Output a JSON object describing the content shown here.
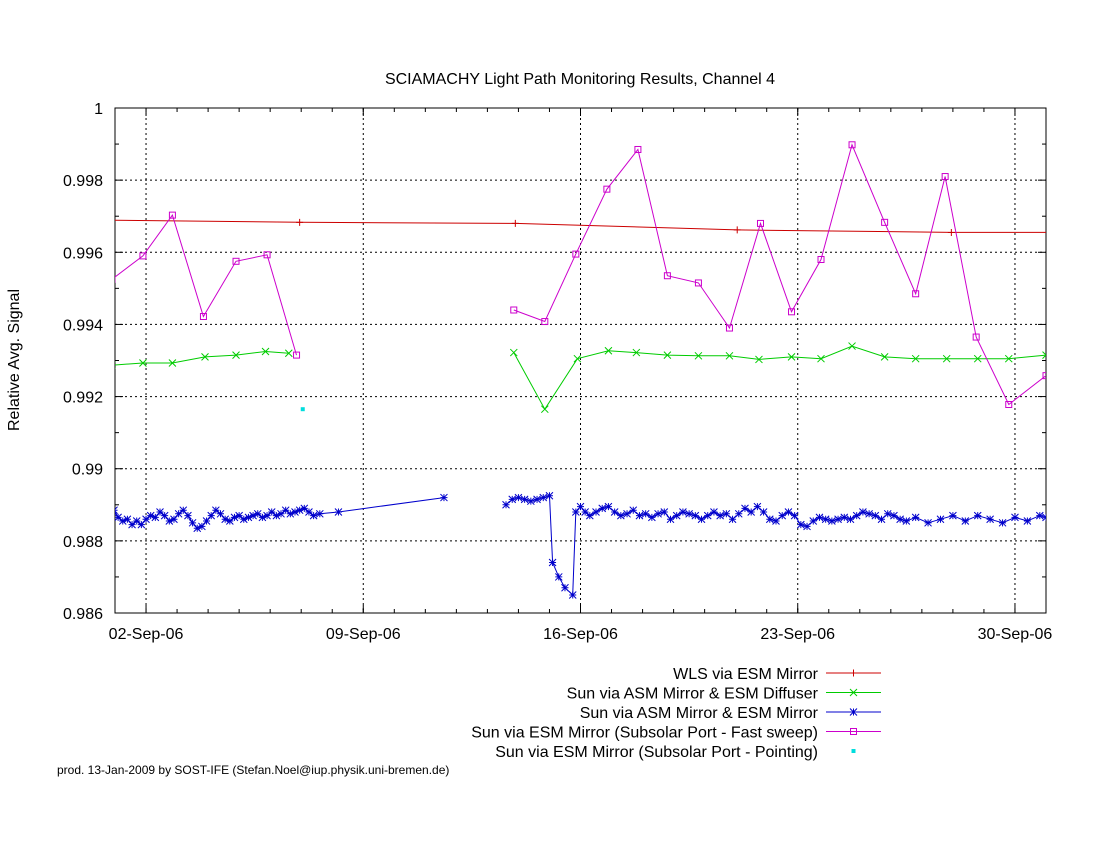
{
  "chart_data": {
    "type": "line",
    "title": "SCIAMACHY Light Path Monitoring Results, Channel 4",
    "xlabel": "",
    "ylabel": "Relative Avg. Signal",
    "x_unit": "day of September 2006",
    "xlim": [
      1,
      31
    ],
    "ylim": [
      0.986,
      1.0
    ],
    "grid": true,
    "legend_position": "below plot, right",
    "x_ticks": [
      {
        "x": 2,
        "label": "02-Sep-06"
      },
      {
        "x": 9,
        "label": "09-Sep-06"
      },
      {
        "x": 16,
        "label": "16-Sep-06"
      },
      {
        "x": 23,
        "label": "23-Sep-06"
      },
      {
        "x": 30,
        "label": "30-Sep-06"
      }
    ],
    "y_ticks": [
      {
        "y": 0.986,
        "label": "0.986"
      },
      {
        "y": 0.988,
        "label": "0.988"
      },
      {
        "y": 0.99,
        "label": "0.99"
      },
      {
        "y": 0.992,
        "label": "0.992"
      },
      {
        "y": 0.994,
        "label": "0.994"
      },
      {
        "y": 0.996,
        "label": "0.996"
      },
      {
        "y": 0.998,
        "label": "0.998"
      },
      {
        "y": 1.0,
        "label": "1"
      }
    ],
    "series": [
      {
        "name": "WLS via ESM Mirror",
        "color": "#cc0000",
        "style": "lines+plus",
        "segments": [
          [
            [
              0.9,
              0.99689
            ],
            [
              6.95,
              0.99683
            ],
            [
              13.9,
              0.9968
            ],
            [
              21.05,
              0.99662
            ],
            [
              27.95,
              0.99655
            ],
            [
              31.2,
              0.99655
            ]
          ]
        ]
      },
      {
        "name": "Sun via ASM Mirror & ESM Diffuser",
        "color": "#00cc00",
        "style": "lines+cross",
        "segments": [
          [
            [
              0.9,
              0.99287
            ],
            [
              1.9,
              0.99293
            ],
            [
              2.85,
              0.99293
            ],
            [
              3.9,
              0.9931
            ],
            [
              4.9,
              0.99315
            ],
            [
              5.85,
              0.99325
            ],
            [
              6.6,
              0.9932
            ]
          ],
          [
            [
              13.85,
              0.99322
            ],
            [
              14.85,
              0.99165
            ],
            [
              15.9,
              0.99305
            ],
            [
              16.9,
              0.99327
            ],
            [
              17.8,
              0.99322
            ],
            [
              18.8,
              0.99315
            ],
            [
              19.8,
              0.99313
            ],
            [
              20.8,
              0.99313
            ],
            [
              21.75,
              0.99303
            ],
            [
              22.8,
              0.9931
            ],
            [
              23.75,
              0.99305
            ],
            [
              24.75,
              0.9934
            ],
            [
              25.8,
              0.9931
            ],
            [
              26.8,
              0.99305
            ],
            [
              27.8,
              0.99305
            ],
            [
              28.8,
              0.99305
            ],
            [
              29.8,
              0.99305
            ],
            [
              31.0,
              0.99315
            ]
          ]
        ]
      },
      {
        "name": "Sun via ASM Mirror & ESM Mirror",
        "color": "#0000cc",
        "style": "lines+star",
        "segments": [
          [
            [
              0.97,
              0.98885
            ],
            [
              1.1,
              0.98865
            ],
            [
              1.25,
              0.98855
            ],
            [
              1.4,
              0.9886
            ],
            [
              1.55,
              0.98845
            ],
            [
              1.7,
              0.98855
            ],
            [
              1.85,
              0.98845
            ],
            [
              2.0,
              0.9886
            ],
            [
              2.15,
              0.9887
            ],
            [
              2.3,
              0.98865
            ],
            [
              2.45,
              0.9888
            ],
            [
              2.6,
              0.9887
            ],
            [
              2.75,
              0.98855
            ],
            [
              2.9,
              0.9886
            ],
            [
              3.05,
              0.98875
            ],
            [
              3.2,
              0.98885
            ],
            [
              3.35,
              0.9887
            ],
            [
              3.5,
              0.9885
            ],
            [
              3.65,
              0.98835
            ],
            [
              3.8,
              0.9884
            ],
            [
              3.95,
              0.98855
            ],
            [
              4.1,
              0.9887
            ],
            [
              4.25,
              0.98885
            ],
            [
              4.4,
              0.98875
            ],
            [
              4.55,
              0.9886
            ],
            [
              4.7,
              0.98855
            ],
            [
              4.85,
              0.98865
            ],
            [
              5.0,
              0.9887
            ],
            [
              5.15,
              0.9886
            ],
            [
              5.3,
              0.98865
            ],
            [
              5.45,
              0.9887
            ],
            [
              5.6,
              0.98875
            ],
            [
              5.75,
              0.98865
            ],
            [
              5.9,
              0.9887
            ],
            [
              6.05,
              0.9888
            ],
            [
              6.2,
              0.9887
            ],
            [
              6.35,
              0.98875
            ],
            [
              6.5,
              0.98885
            ],
            [
              6.65,
              0.98875
            ],
            [
              6.8,
              0.9888
            ],
            [
              6.95,
              0.98885
            ],
            [
              7.1,
              0.9889
            ],
            [
              7.25,
              0.9888
            ],
            [
              7.4,
              0.9887
            ],
            [
              7.6,
              0.98875
            ],
            [
              8.2,
              0.9888
            ],
            [
              11.6,
              0.9892
            ]
          ],
          [
            [
              13.6,
              0.989
            ],
            [
              13.8,
              0.98915
            ],
            [
              14.0,
              0.9892
            ],
            [
              14.2,
              0.98915
            ],
            [
              14.4,
              0.9891
            ],
            [
              14.6,
              0.98915
            ],
            [
              14.8,
              0.9892
            ],
            [
              15.0,
              0.98925
            ],
            [
              15.1,
              0.9874
            ],
            [
              15.3,
              0.987
            ],
            [
              15.5,
              0.9867
            ],
            [
              15.75,
              0.9865
            ],
            [
              15.85,
              0.9888
            ],
            [
              16.0,
              0.98895
            ],
            [
              16.15,
              0.9888
            ],
            [
              16.3,
              0.9887
            ],
            [
              16.5,
              0.9888
            ],
            [
              16.7,
              0.9889
            ],
            [
              16.9,
              0.98895
            ],
            [
              17.1,
              0.9888
            ],
            [
              17.3,
              0.9887
            ],
            [
              17.5,
              0.98875
            ],
            [
              17.7,
              0.98885
            ],
            [
              17.9,
              0.9887
            ],
            [
              18.1,
              0.98875
            ],
            [
              18.3,
              0.98865
            ],
            [
              18.5,
              0.98875
            ],
            [
              18.7,
              0.9888
            ],
            [
              18.9,
              0.9886
            ],
            [
              19.1,
              0.9887
            ],
            [
              19.3,
              0.9888
            ],
            [
              19.5,
              0.98875
            ],
            [
              19.7,
              0.9887
            ],
            [
              19.9,
              0.9886
            ],
            [
              20.1,
              0.9887
            ],
            [
              20.3,
              0.9888
            ],
            [
              20.5,
              0.9887
            ],
            [
              20.7,
              0.98875
            ],
            [
              20.9,
              0.9886
            ],
            [
              21.1,
              0.98875
            ],
            [
              21.3,
              0.9889
            ],
            [
              21.5,
              0.9888
            ],
            [
              21.7,
              0.98895
            ],
            [
              21.9,
              0.9888
            ],
            [
              22.1,
              0.9886
            ],
            [
              22.3,
              0.98855
            ],
            [
              22.5,
              0.9887
            ],
            [
              22.7,
              0.9888
            ],
            [
              22.9,
              0.9887
            ],
            [
              23.1,
              0.98845
            ],
            [
              23.3,
              0.9884
            ],
            [
              23.5,
              0.98855
            ],
            [
              23.7,
              0.98865
            ],
            [
              23.9,
              0.9886
            ],
            [
              24.1,
              0.98855
            ],
            [
              24.3,
              0.9886
            ],
            [
              24.5,
              0.98865
            ],
            [
              24.7,
              0.9886
            ],
            [
              24.9,
              0.9887
            ],
            [
              25.1,
              0.9888
            ],
            [
              25.3,
              0.98875
            ],
            [
              25.5,
              0.9887
            ],
            [
              25.7,
              0.9886
            ],
            [
              25.9,
              0.98875
            ],
            [
              26.1,
              0.9887
            ],
            [
              26.3,
              0.9886
            ],
            [
              26.5,
              0.98855
            ],
            [
              26.8,
              0.98865
            ],
            [
              27.2,
              0.9885
            ],
            [
              27.6,
              0.9886
            ],
            [
              28.0,
              0.9887
            ],
            [
              28.4,
              0.98855
            ],
            [
              28.8,
              0.9887
            ],
            [
              29.2,
              0.9886
            ],
            [
              29.6,
              0.9885
            ],
            [
              30.0,
              0.98865
            ],
            [
              30.4,
              0.98855
            ],
            [
              30.8,
              0.9887
            ],
            [
              31.0,
              0.98865
            ]
          ]
        ]
      },
      {
        "name": "Sun via ESM Mirror (Subsolar Port - Fast sweep)",
        "color": "#cc00cc",
        "style": "lines+square",
        "segments": [
          [
            [
              0.9,
              0.99525
            ],
            [
              1.9,
              0.9959
            ],
            [
              2.85,
              0.99703
            ],
            [
              3.85,
              0.99422
            ],
            [
              4.9,
              0.99575
            ],
            [
              5.9,
              0.99593
            ],
            [
              6.85,
              0.99315
            ]
          ],
          [
            [
              13.85,
              0.9944
            ],
            [
              14.85,
              0.99408
            ],
            [
              15.85,
              0.99595
            ],
            [
              16.85,
              0.99775
            ],
            [
              17.85,
              0.99885
            ],
            [
              18.8,
              0.99535
            ],
            [
              19.8,
              0.99515
            ],
            [
              20.8,
              0.9939
            ],
            [
              21.8,
              0.9968
            ],
            [
              22.8,
              0.99435
            ],
            [
              23.75,
              0.9958
            ],
            [
              24.75,
              0.99898
            ],
            [
              25.8,
              0.99683
            ],
            [
              26.8,
              0.99485
            ],
            [
              27.75,
              0.9981
            ],
            [
              28.75,
              0.99365
            ],
            [
              29.8,
              0.99178
            ],
            [
              31.0,
              0.99258
            ]
          ]
        ]
      },
      {
        "name": "Sun via ESM Mirror (Subsolar Port - Pointing)",
        "color": "#00dddd",
        "style": "points",
        "segments": [
          [
            [
              7.05,
              0.99165
            ]
          ]
        ]
      }
    ]
  },
  "footer": "prod. 13-Jan-2009 by SOST-IFE (Stefan.Noel@iup.physik.uni-bremen.de)"
}
